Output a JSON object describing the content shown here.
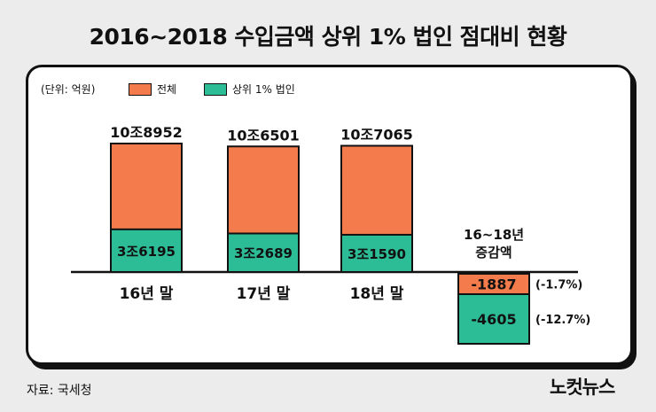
{
  "title": "2016~2018 수입금액 상위 1% 법인 점대비 현황",
  "unit_label": "(단위: 억원)",
  "legend": [
    {
      "label": "전체",
      "color": "#f47c4c"
    },
    {
      "label": "상위 1% 법인",
      "color": "#2dbd96"
    }
  ],
  "source": "자료: 국세청",
  "logo": "노컷뉴스",
  "chart_data": {
    "type": "bar",
    "title": "2016~2018 수입금액 상위 1% 법인 점대비 현황",
    "ylabel": "억원",
    "categories": [
      "16년 말",
      "17년 말",
      "18년 말"
    ],
    "series": [
      {
        "name": "전체",
        "values": [
          108952,
          106501,
          107065
        ],
        "labels": [
          "10조8952",
          "10조6501",
          "10조7065"
        ]
      },
      {
        "name": "상위 1% 법인",
        "values": [
          36195,
          32689,
          31590
        ],
        "labels": [
          "3조6195",
          "3조2689",
          "3조1590"
        ]
      }
    ],
    "change": {
      "label": "16~18년 증감액",
      "items": [
        {
          "series": "전체",
          "value": -1887,
          "label": "-1887",
          "pct": "(-1.7%)"
        },
        {
          "series": "상위 1% 법인",
          "value": -4605,
          "label": "-4605",
          "pct": "(-12.7%)"
        }
      ]
    }
  }
}
